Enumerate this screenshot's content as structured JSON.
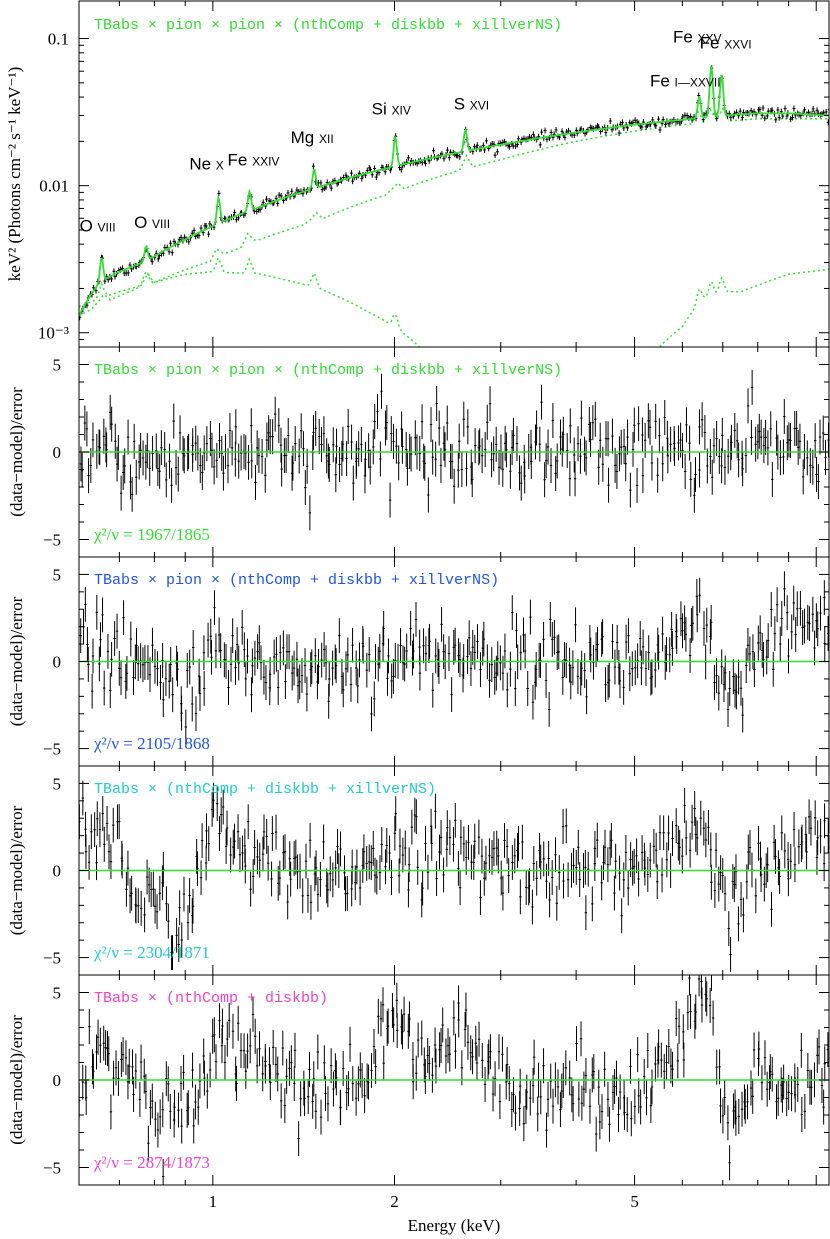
{
  "chart_data": [
    {
      "type": "line",
      "title": "",
      "xlabel": "",
      "ylabel": "keV² (Photons cm⁻² s⁻¹ keV⁻¹)",
      "xscale": "log",
      "yscale": "log",
      "xlim": [
        0.6,
        10.5
      ],
      "ylim": [
        0.0008,
        0.18
      ],
      "yticks": [
        {
          "value": 0.1,
          "label": "0.1"
        },
        {
          "value": 0.01,
          "label": "0.01"
        },
        {
          "value": 0.001,
          "label": "10⁻³"
        }
      ],
      "model_label": "TBabs × pion × pion × (nthComp + diskbb + xillverNS)",
      "model_color": "#33dd33",
      "data_color": "#000000",
      "line_ids": [
        {
          "label": "O VIII",
          "energy": 0.654
        },
        {
          "label": "O VIII",
          "energy": 0.775
        },
        {
          "label": "Ne X",
          "energy": 1.022
        },
        {
          "label": "Fe XXIV",
          "energy": 1.15
        },
        {
          "label": "Mg XII",
          "energy": 1.472
        },
        {
          "label": "Si XIV",
          "energy": 2.006
        },
        {
          "label": "S XVI",
          "energy": 2.622
        },
        {
          "label": "Fe I—XXVII",
          "energy": 6.4
        },
        {
          "label": "Fe XXV",
          "energy": 6.7
        },
        {
          "label": "Fe XXVI",
          "energy": 6.97
        }
      ],
      "series": [
        {
          "name": "total model",
          "x": [
            0.6,
            0.65,
            0.7,
            0.75,
            0.8,
            0.9,
            1.0,
            1.2,
            1.5,
            2.0,
            2.5,
            3.0,
            4.0,
            5.0,
            6.0,
            7.0,
            8.0,
            9.0,
            10.5
          ],
          "values": [
            0.0013,
            0.0022,
            0.0026,
            0.0029,
            0.0033,
            0.0043,
            0.0053,
            0.0072,
            0.0098,
            0.0135,
            0.0165,
            0.019,
            0.023,
            0.026,
            0.028,
            0.03,
            0.031,
            0.031,
            0.03
          ]
        },
        {
          "name": "nthComp",
          "x": [
            0.6,
            0.8,
            1.0,
            1.5,
            2.0,
            3.0,
            4.0,
            5.0,
            6.0,
            8.0,
            10.5
          ],
          "values": [
            0.0013,
            0.0022,
            0.0031,
            0.0058,
            0.009,
            0.015,
            0.02,
            0.0235,
            0.026,
            0.0285,
            0.0285
          ]
        },
        {
          "name": "diskbb",
          "x": [
            0.6,
            0.7,
            0.8,
            0.9,
            1.0,
            1.2,
            1.5,
            1.8,
            2.0,
            2.2
          ],
          "values": [
            0.0015,
            0.0019,
            0.0022,
            0.0025,
            0.0026,
            0.0025,
            0.002,
            0.0014,
            0.0011,
            0.0008
          ]
        },
        {
          "name": "xillverNS",
          "x": [
            5.5,
            6.0,
            6.5,
            7.0,
            7.5,
            8.0,
            9.0,
            10.5
          ],
          "values": [
            0.0008,
            0.0011,
            0.0017,
            0.0019,
            0.0019,
            0.0021,
            0.0025,
            0.0027
          ]
        }
      ]
    },
    {
      "type": "scatter",
      "xlabel": "",
      "ylabel": "(data−model)/error",
      "xscale": "log",
      "xlim": [
        0.6,
        10.5
      ],
      "ylim": [
        -6,
        6
      ],
      "yticks": [
        {
          "value": 5,
          "label": "5"
        },
        {
          "value": 0,
          "label": "0"
        },
        {
          "value": -5,
          "label": "−5"
        }
      ],
      "model_label": "TBabs × pion × pion × (nthComp + diskbb + xillverNS)",
      "chi2_label": "χ²/ν = 1967/1865",
      "chi2": 1967,
      "dof": 1865,
      "label_color": "#33dd33",
      "residual_trend": {
        "x": [
          0.6,
          0.7,
          0.8,
          1.0,
          1.5,
          2.0,
          3.0,
          5.0,
          6.4,
          6.7,
          7.0,
          8.0,
          10.5
        ],
        "values": [
          0.3,
          -0.3,
          -0.6,
          0.2,
          -0.4,
          0.2,
          0.1,
          0.1,
          0.2,
          0.1,
          -0.2,
          0.3,
          0.5
        ]
      }
    },
    {
      "type": "scatter",
      "xlabel": "",
      "ylabel": "(data−model)/error",
      "xscale": "log",
      "xlim": [
        0.6,
        10.5
      ],
      "ylim": [
        -6,
        6
      ],
      "yticks": [
        {
          "value": 5,
          "label": "5"
        },
        {
          "value": 0,
          "label": "0"
        },
        {
          "value": -5,
          "label": "−5"
        }
      ],
      "model_label": "TBabs × pion × (nthComp + diskbb + xillverNS)",
      "chi2_label": "χ²/ν = 2105/1868",
      "chi2": 2105,
      "dof": 1868,
      "label_color": "#2255dd",
      "residual_trend": {
        "x": [
          0.6,
          0.7,
          0.8,
          0.9,
          1.0,
          1.5,
          2.0,
          3.0,
          5.0,
          6.0,
          6.4,
          6.7,
          7.0,
          8.0,
          9.0,
          10.5
        ],
        "values": [
          0.8,
          0.2,
          -0.8,
          -1.5,
          0.3,
          -0.5,
          0.4,
          0.2,
          0.0,
          0.5,
          2.5,
          0.5,
          -2.5,
          0.0,
          2.0,
          2.5
        ]
      }
    },
    {
      "type": "scatter",
      "xlabel": "",
      "ylabel": "(data−model)/error",
      "xscale": "log",
      "xlim": [
        0.6,
        10.5
      ],
      "ylim": [
        -6,
        6
      ],
      "yticks": [
        {
          "value": 5,
          "label": "5"
        },
        {
          "value": 0,
          "label": "0"
        },
        {
          "value": -5,
          "label": "−5"
        }
      ],
      "model_label": "TBabs × (nthComp + diskbb + xillverNS)",
      "chi2_label": "χ²/ν = 2304/1871",
      "chi2": 2304,
      "dof": 1871,
      "label_color": "#22cccc",
      "residual_trend": {
        "x": [
          0.6,
          0.7,
          0.75,
          0.8,
          0.85,
          0.9,
          1.0,
          1.2,
          1.5,
          2.0,
          3.0,
          5.0,
          6.0,
          6.4,
          6.7,
          7.0,
          8.0,
          9.0,
          10.5
        ],
        "values": [
          2.5,
          1.5,
          -1.8,
          -2.0,
          -2.5,
          -2.5,
          2.5,
          0.5,
          -1.0,
          1.5,
          0.3,
          0.0,
          1.0,
          3.0,
          0.5,
          -2.5,
          0.0,
          0.5,
          3.0
        ]
      }
    },
    {
      "type": "scatter",
      "xlabel": "Energy (keV)",
      "ylabel": "(data−model)/error",
      "xscale": "log",
      "xlim": [
        0.6,
        10.5
      ],
      "ylim": [
        -6,
        6
      ],
      "xticks": [
        {
          "value": 1,
          "label": "1"
        },
        {
          "value": 2,
          "label": "2"
        },
        {
          "value": 5,
          "label": "5"
        }
      ],
      "yticks": [
        {
          "value": 5,
          "label": "5"
        },
        {
          "value": 0,
          "label": "0"
        },
        {
          "value": -5,
          "label": "−5"
        }
      ],
      "model_label": "TBabs × (nthComp + diskbb)",
      "chi2_label": "χ²/ν = 2874/1873",
      "chi2": 2874,
      "dof": 1873,
      "label_color": "#ee44cc",
      "residual_trend": {
        "x": [
          0.6,
          0.7,
          0.8,
          0.9,
          1.0,
          1.2,
          1.5,
          1.8,
          2.0,
          2.2,
          2.5,
          3.0,
          4.0,
          5.0,
          6.0,
          6.4,
          6.7,
          7.0,
          8.0,
          9.0,
          10.5
        ],
        "values": [
          0.5,
          1.5,
          -2.0,
          -1.5,
          2.5,
          1.5,
          -1.0,
          0.5,
          3.5,
          0.5,
          2.5,
          0.0,
          -0.5,
          -0.5,
          2.0,
          4.0,
          5.0,
          -2.5,
          0.0,
          -1.5,
          1.0
        ]
      }
    }
  ]
}
